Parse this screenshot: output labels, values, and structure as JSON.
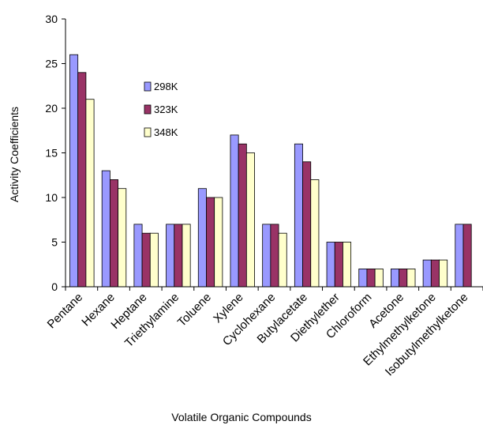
{
  "chart_data": {
    "type": "bar",
    "title": "",
    "xlabel": "Volatile Organic Compounds",
    "ylabel": "Activity Coefficients",
    "ylim": [
      0,
      30
    ],
    "yticks": [
      0,
      5,
      10,
      15,
      20,
      25,
      30
    ],
    "grid": false,
    "legend_position": "upper-left-inside",
    "categories": [
      "Pentane",
      "Hexane",
      "Heptane",
      "Triethylamine",
      "Toluene",
      "Xylene",
      "Cyclohexane",
      "Butylacetate",
      "Diethylether",
      "Chloroform",
      "Acetone",
      "Ethylmethylketone",
      "Isobutylmethylketone"
    ],
    "series": [
      {
        "name": "298K",
        "color": "#9999ff",
        "values": [
          26,
          13,
          7,
          7,
          11,
          17,
          7,
          16,
          5,
          2,
          2,
          3,
          7
        ]
      },
      {
        "name": "323K",
        "color": "#993366",
        "values": [
          24,
          12,
          6,
          7,
          10,
          16,
          7,
          14,
          5,
          2,
          2,
          3,
          7
        ]
      },
      {
        "name": "348K",
        "color": "#ffffcc",
        "values": [
          21,
          11,
          6,
          7,
          10,
          15,
          6,
          12,
          5,
          2,
          2,
          3,
          null
        ]
      }
    ]
  }
}
